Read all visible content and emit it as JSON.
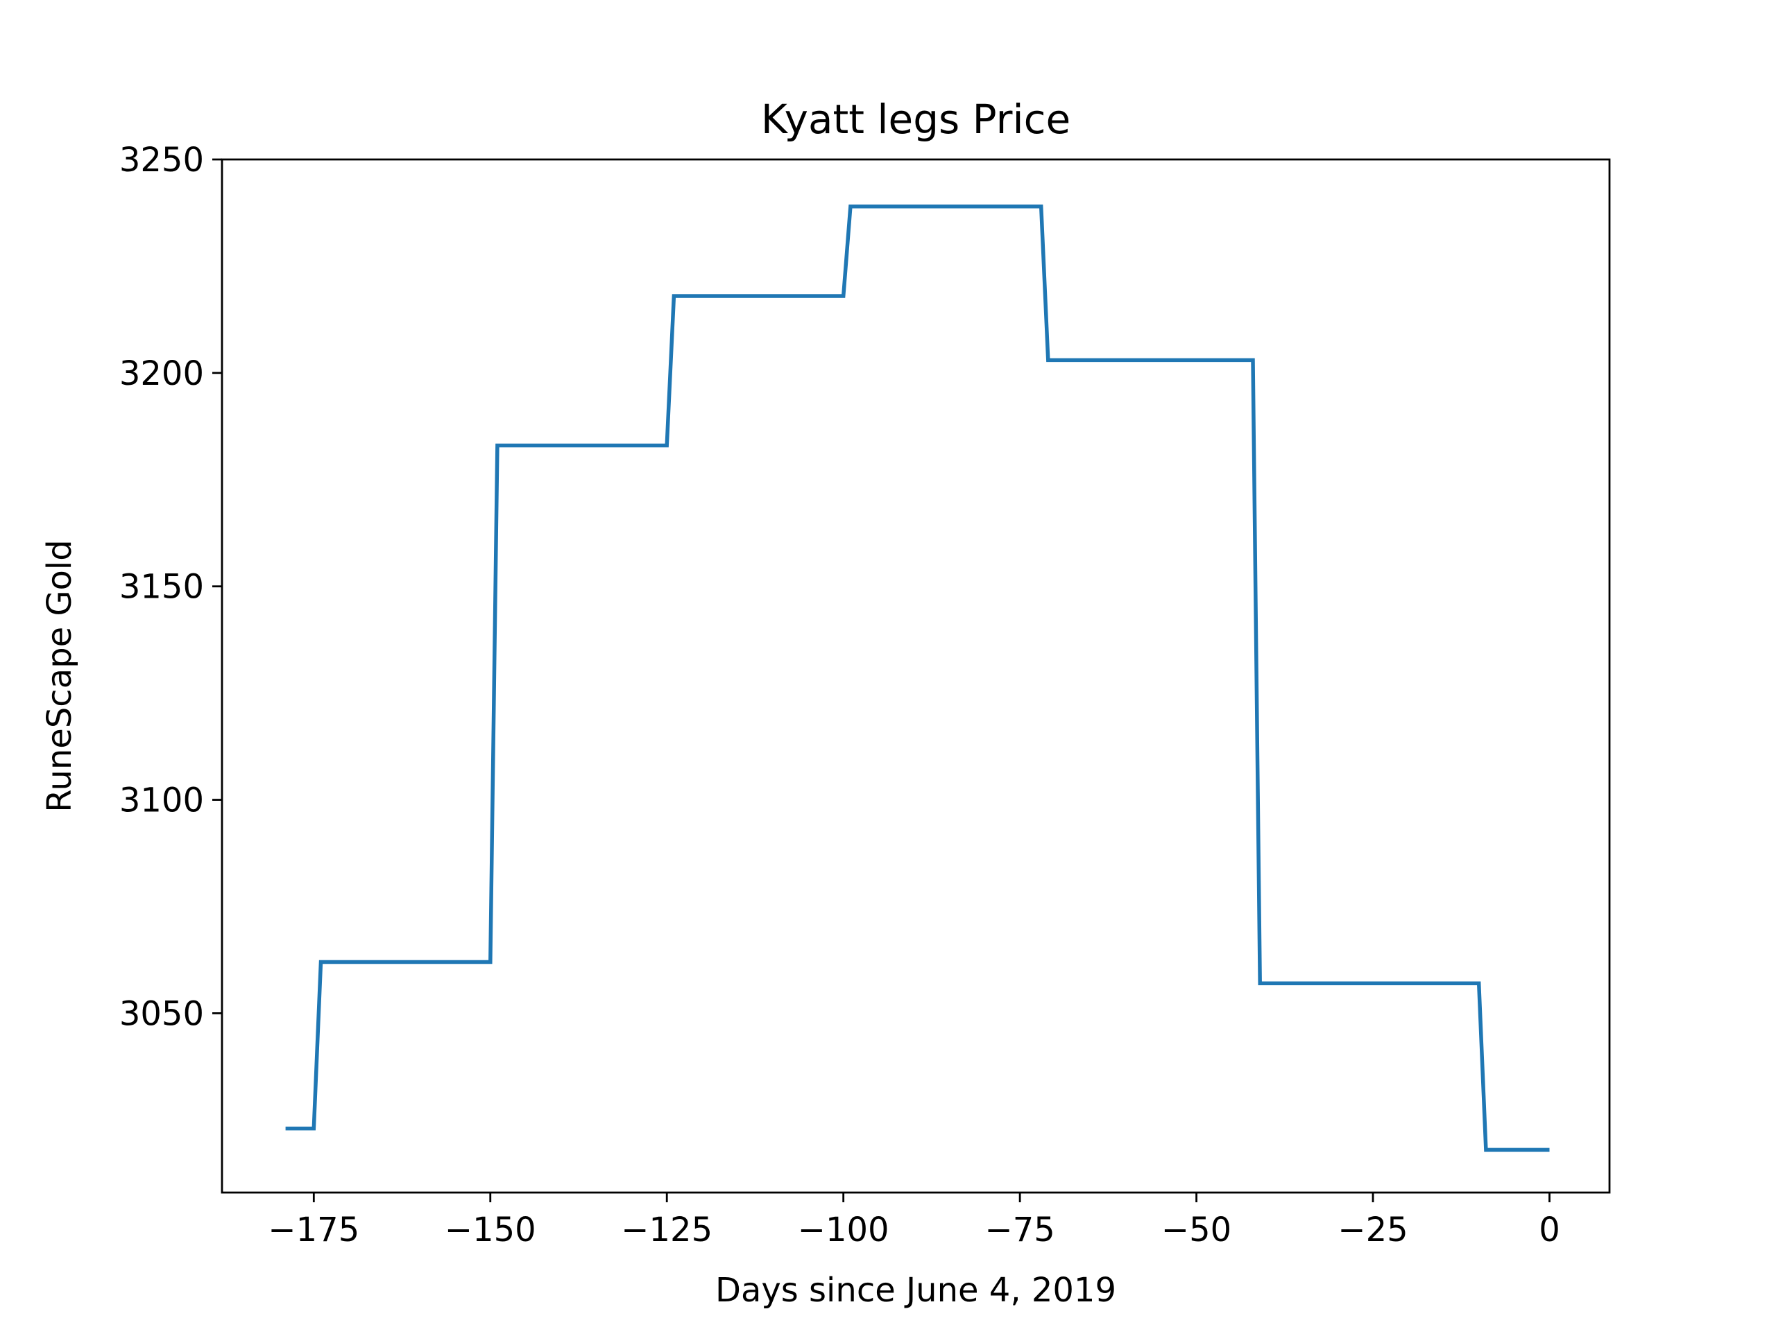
{
  "chart_data": {
    "type": "line",
    "title": "Kyatt legs Price",
    "xlabel": "Days since June 4, 2019",
    "ylabel": "RuneScape Gold",
    "xlim": [
      -188,
      8.5
    ],
    "ylim": [
      3008,
      3250
    ],
    "xticks": [
      -175,
      -150,
      -125,
      -100,
      -75,
      -50,
      -25,
      0
    ],
    "xtick_labels": [
      "−175",
      "−150",
      "−125",
      "−100",
      "−75",
      "−50",
      "−25",
      "0"
    ],
    "yticks": [
      3050,
      3100,
      3150,
      3200,
      3250
    ],
    "ytick_labels": [
      "3050",
      "3100",
      "3150",
      "3200",
      "3250"
    ],
    "grid": false,
    "legend": "none",
    "line_color": "#1f77b4",
    "series": [
      {
        "x": [
          -179,
          -175,
          -174,
          -150,
          -149,
          -125,
          -124,
          -100,
          -99,
          -72,
          -71,
          -42,
          -41,
          -10,
          -9,
          0
        ],
        "y": [
          3023,
          3023,
          3062,
          3062,
          3183,
          3183,
          3218,
          3218,
          3239,
          3239,
          3203,
          3203,
          3057,
          3057,
          3018,
          3018
        ]
      }
    ]
  }
}
